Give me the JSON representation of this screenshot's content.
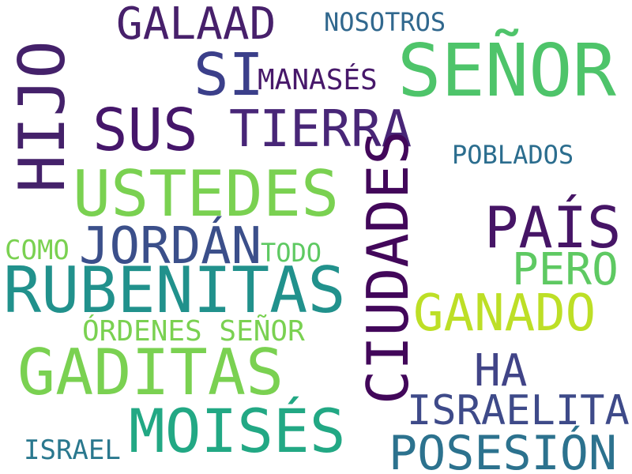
{
  "words": [
    {
      "id": "senor-large",
      "text": "SEÑOR",
      "color": "#4ec46a"
    },
    {
      "id": "hijo",
      "text": "HIJO",
      "color": "#44216a"
    },
    {
      "id": "galaad",
      "text": "GALAAD",
      "color": "#47206b"
    },
    {
      "id": "nosotros",
      "text": "NOSOTROS",
      "color": "#31688e"
    },
    {
      "id": "si",
      "text": "SI",
      "color": "#3b3f8a"
    },
    {
      "id": "manases",
      "text": "MANASÉS",
      "color": "#47186a"
    },
    {
      "id": "sus",
      "text": "SUS",
      "color": "#45166a"
    },
    {
      "id": "tierra",
      "text": "TIERRA",
      "color": "#482677"
    },
    {
      "id": "poblados",
      "text": "POBLADOS",
      "color": "#2b6d8e"
    },
    {
      "id": "ustedes",
      "text": "USTEDES",
      "color": "#7ad151"
    },
    {
      "id": "ciudades",
      "text": "CIUDADES",
      "color": "#42075a"
    },
    {
      "id": "pais",
      "text": "PAÍS",
      "color": "#461566"
    },
    {
      "id": "jordan",
      "text": "JORDÁN",
      "color": "#3b4f8a"
    },
    {
      "id": "como",
      "text": "COMO",
      "color": "#7ad151"
    },
    {
      "id": "todo",
      "text": "TODO",
      "color": "#5ec962"
    },
    {
      "id": "pero",
      "text": "PERO",
      "color": "#5ec962"
    },
    {
      "id": "rubenitas",
      "text": "RUBENITAS",
      "color": "#21918c"
    },
    {
      "id": "ganado",
      "text": "GANADO",
      "color": "#bddf26"
    },
    {
      "id": "ordenes-senor",
      "text": "ÓRDENES SEÑOR",
      "color": "#7ad151"
    },
    {
      "id": "gaditas",
      "text": "GADITAS",
      "color": "#7ad151"
    },
    {
      "id": "ha",
      "text": "HA",
      "color": "#414487"
    },
    {
      "id": "israelita",
      "text": "ISRAELITA",
      "color": "#3e4a89"
    },
    {
      "id": "moises",
      "text": "MOISÉS",
      "color": "#22a884"
    },
    {
      "id": "israel",
      "text": "ISRAEL",
      "color": "#2a788e"
    },
    {
      "id": "posesion",
      "text": "POSESIÓN",
      "color": "#2c728e"
    }
  ]
}
